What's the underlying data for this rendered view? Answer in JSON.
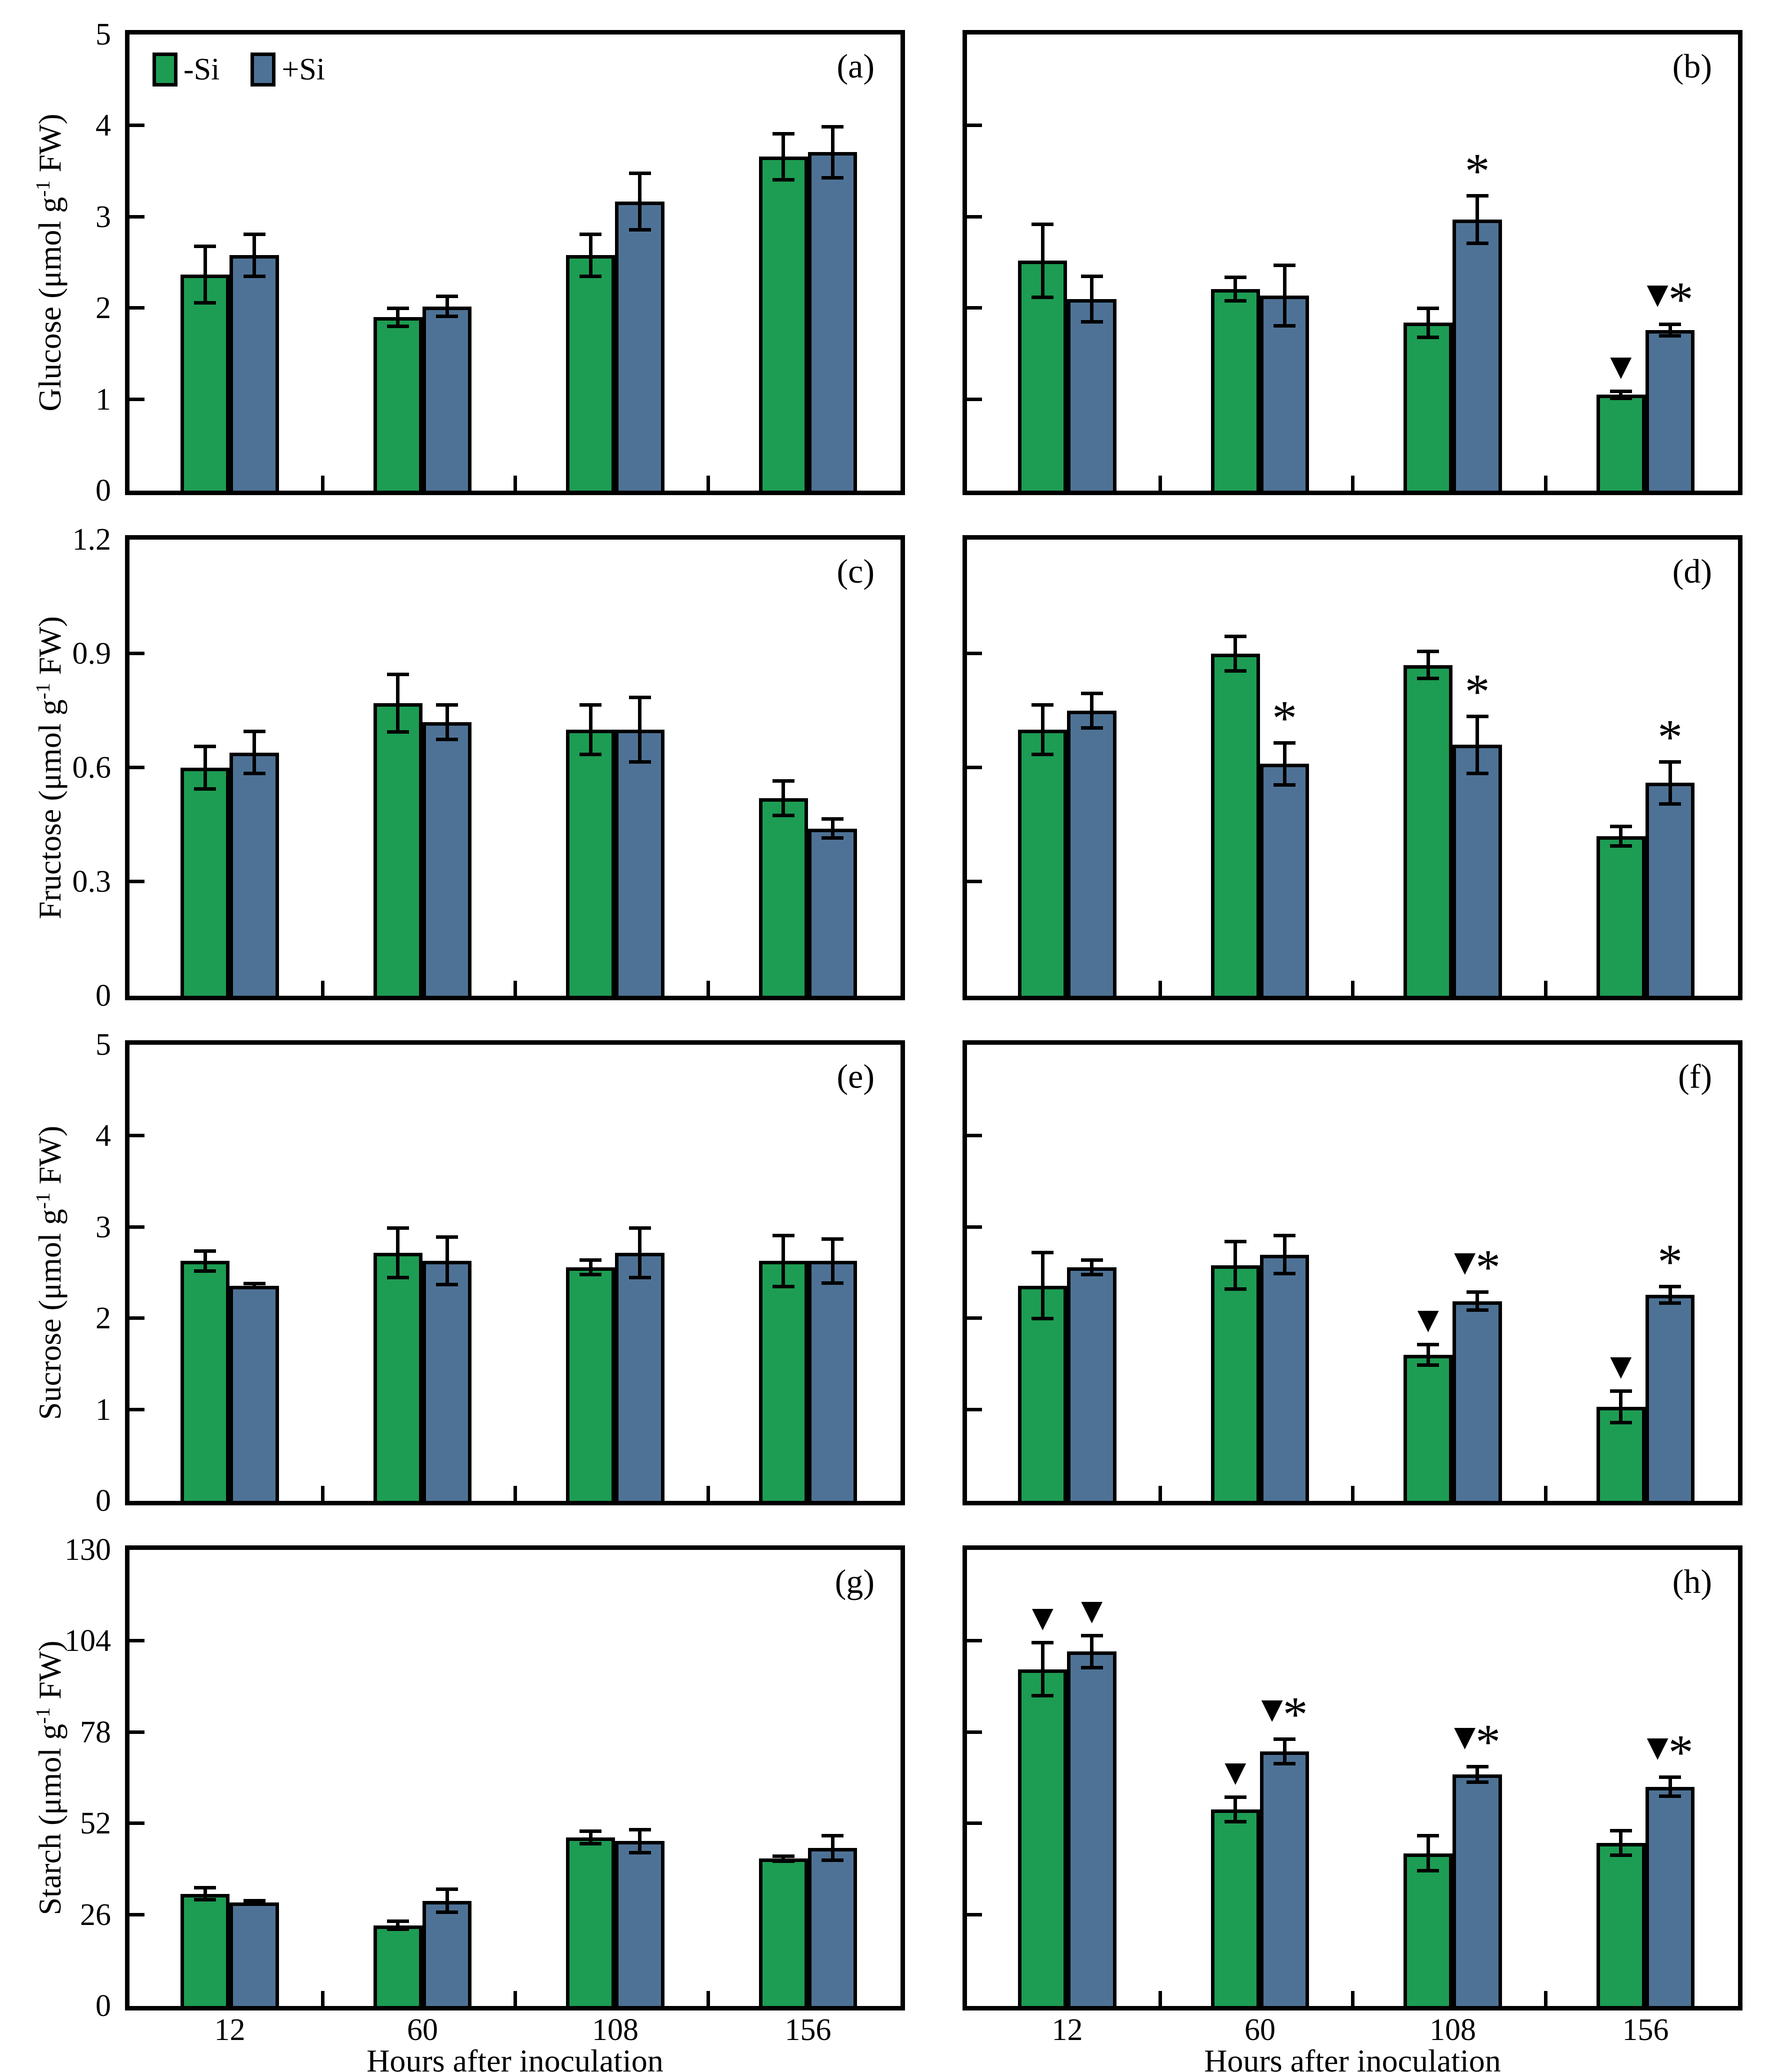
{
  "chart_data": {
    "type": "bar",
    "categories": [
      "12",
      "60",
      "108",
      "156"
    ],
    "xlabel": "Hours after inoculation",
    "legend": [
      "-Si",
      "+Si"
    ],
    "colors": [
      "#1D9D53",
      "#4E7296"
    ],
    "marker_glyphs": {
      "tri": "▼",
      "star": "*"
    },
    "rows": [
      {
        "ylabel_parts": [
          {
            "t": "Glucose (μmol g"
          },
          {
            "t": "-1",
            "sup": true
          },
          {
            "t": " FW)"
          }
        ],
        "ylim": [
          0,
          5
        ],
        "yticks": [
          "0",
          "1",
          "2",
          "3",
          "4",
          "5"
        ]
      },
      {
        "ylabel_parts": [
          {
            "t": "Fructose (μmol g"
          },
          {
            "t": "-1",
            "sup": true
          },
          {
            "t": " FW)"
          }
        ],
        "ylim": [
          0,
          1.2
        ],
        "yticks": [
          "0",
          "0.3",
          "0.6",
          "0.9",
          "1.2"
        ]
      },
      {
        "ylabel_parts": [
          {
            "t": "Sucrose (μmol g"
          },
          {
            "t": "-1",
            "sup": true
          },
          {
            "t": " FW)"
          }
        ],
        "ylim": [
          0,
          5
        ],
        "yticks": [
          "0",
          "1",
          "2",
          "3",
          "4",
          "5"
        ]
      },
      {
        "ylabel_parts": [
          {
            "t": "Starch (μmol g"
          },
          {
            "t": "-1",
            "sup": true
          },
          {
            "t": " FW)"
          }
        ],
        "ylim": [
          0,
          130
        ],
        "yticks": [
          "0",
          "26",
          "52",
          "78",
          "104",
          "130"
        ]
      }
    ],
    "panels": [
      {
        "letter": "(a)",
        "row": 0,
        "col": 0,
        "has_legend": true,
        "series": [
          {
            "name": "-Si",
            "values": [
              2.37,
              1.9,
              2.58,
              3.66
            ],
            "errors": [
              0.33,
              0.12,
              0.25,
              0.27
            ],
            "markers": [
              "",
              "",
              "",
              ""
            ]
          },
          {
            "name": "+Si",
            "values": [
              2.58,
              2.02,
              3.17,
              3.71
            ],
            "errors": [
              0.25,
              0.13,
              0.33,
              0.3
            ],
            "markers": [
              "",
              "",
              "",
              ""
            ]
          }
        ]
      },
      {
        "letter": "(b)",
        "row": 0,
        "col": 1,
        "has_legend": false,
        "series": [
          {
            "name": "-Si",
            "values": [
              2.52,
              2.21,
              1.84,
              1.05
            ],
            "errors": [
              0.42,
              0.15,
              0.18,
              0.06
            ],
            "markers": [
              "",
              "",
              "",
              "tri"
            ]
          },
          {
            "name": "+Si",
            "values": [
              2.1,
              2.14,
              2.97,
              1.76
            ],
            "errors": [
              0.27,
              0.35,
              0.28,
              0.08
            ],
            "markers": [
              "",
              "",
              "star",
              "tri_star"
            ]
          }
        ]
      },
      {
        "letter": "(c)",
        "row": 1,
        "col": 0,
        "has_legend": false,
        "series": [
          {
            "name": "-Si",
            "values": [
              0.6,
              0.77,
              0.7,
              0.52
            ],
            "errors": [
              0.06,
              0.08,
              0.07,
              0.05
            ],
            "markers": [
              "",
              "",
              "",
              ""
            ]
          },
          {
            "name": "+Si",
            "values": [
              0.64,
              0.72,
              0.7,
              0.44
            ],
            "errors": [
              0.06,
              0.05,
              0.09,
              0.03
            ],
            "markers": [
              "",
              "",
              "",
              ""
            ]
          }
        ]
      },
      {
        "letter": "(d)",
        "row": 1,
        "col": 1,
        "has_legend": false,
        "series": [
          {
            "name": "-Si",
            "values": [
              0.7,
              0.9,
              0.87,
              0.42
            ],
            "errors": [
              0.07,
              0.05,
              0.04,
              0.03
            ],
            "markers": [
              "",
              "",
              "",
              ""
            ]
          },
          {
            "name": "+Si",
            "values": [
              0.75,
              0.61,
              0.66,
              0.56
            ],
            "errors": [
              0.05,
              0.06,
              0.08,
              0.06
            ],
            "markers": [
              "",
              "star",
              "star",
              "star"
            ]
          }
        ]
      },
      {
        "letter": "(e)",
        "row": 2,
        "col": 0,
        "has_legend": false,
        "series": [
          {
            "name": "-Si",
            "values": [
              2.63,
              2.72,
              2.56,
              2.63
            ],
            "errors": [
              0.13,
              0.29,
              0.1,
              0.3
            ],
            "markers": [
              "",
              "",
              "",
              ""
            ]
          },
          {
            "name": "+Si",
            "values": [
              2.36,
              2.63,
              2.72,
              2.63
            ],
            "errors": [
              0.04,
              0.28,
              0.29,
              0.26
            ],
            "markers": [
              "",
              "",
              "",
              ""
            ]
          }
        ]
      },
      {
        "letter": "(f)",
        "row": 2,
        "col": 1,
        "has_legend": false,
        "series": [
          {
            "name": "-Si",
            "values": [
              2.36,
              2.58,
              1.6,
              1.03
            ],
            "errors": [
              0.38,
              0.28,
              0.13,
              0.19
            ],
            "markers": [
              "",
              "",
              "tri",
              "tri"
            ]
          },
          {
            "name": "+Si",
            "values": [
              2.56,
              2.7,
              2.19,
              2.26
            ],
            "errors": [
              0.1,
              0.23,
              0.12,
              0.11
            ],
            "markers": [
              "",
              "",
              "tri_star",
              "star"
            ]
          }
        ]
      },
      {
        "letter": "(g)",
        "row": 3,
        "col": 0,
        "has_legend": false,
        "series": [
          {
            "name": "-Si",
            "values": [
              32,
              23,
              48,
              42
            ],
            "errors": [
              2.2,
              1.6,
              2.3,
              1.2
            ],
            "markers": [
              "",
              "",
              "",
              ""
            ]
          },
          {
            "name": "+Si",
            "values": [
              29.5,
              30,
              47,
              45
            ],
            "errors": [
              1.0,
              3.8,
              3.8,
              4.0
            ],
            "markers": [
              "",
              "",
              "",
              ""
            ]
          }
        ]
      },
      {
        "letter": "(h)",
        "row": 3,
        "col": 1,
        "has_legend": false,
        "series": [
          {
            "name": "-Si",
            "values": [
              96,
              56,
              43.5,
              46.5
            ],
            "errors": [
              8,
              4,
              5.5,
              4
            ],
            "markers": [
              "tri",
              "tri",
              "",
              ""
            ]
          },
          {
            "name": "+Si",
            "values": [
              101,
              72.5,
              66,
              62.5
            ],
            "errors": [
              5,
              4,
              2.7,
              3.2
            ],
            "markers": [
              "tri",
              "tri_star",
              "tri_star",
              "tri_star"
            ]
          }
        ]
      }
    ]
  }
}
